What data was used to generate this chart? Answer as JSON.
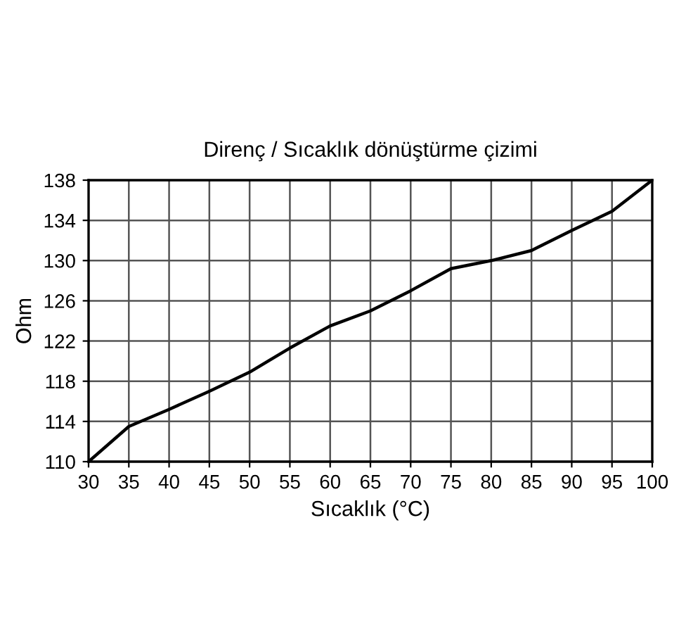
{
  "chart_data": {
    "type": "line",
    "title": "Direnç / Sıcaklık dönüştürme çizimi",
    "xlabel": "Sıcaklık (°C)",
    "ylabel": "Ohm",
    "x": [
      30,
      35,
      40,
      45,
      50,
      55,
      60,
      65,
      70,
      75,
      80,
      85,
      90,
      95,
      100
    ],
    "series": [
      {
        "color": "#000000",
        "values": [
          110,
          113.5,
          115.2,
          117.0,
          118.9,
          121.3,
          123.5,
          125.0,
          127.0,
          129.2,
          130.0,
          131.0,
          133.0,
          134.9,
          138.0
        ]
      }
    ],
    "xlim": [
      30,
      100
    ],
    "xticks": [
      30,
      35,
      40,
      45,
      50,
      55,
      60,
      65,
      70,
      75,
      80,
      85,
      90,
      95,
      100
    ],
    "ylim": [
      110,
      138
    ],
    "yticks": [
      110,
      114,
      118,
      122,
      126,
      130,
      134,
      138
    ],
    "grid": true,
    "marker": "none",
    "line_style": "solid"
  }
}
